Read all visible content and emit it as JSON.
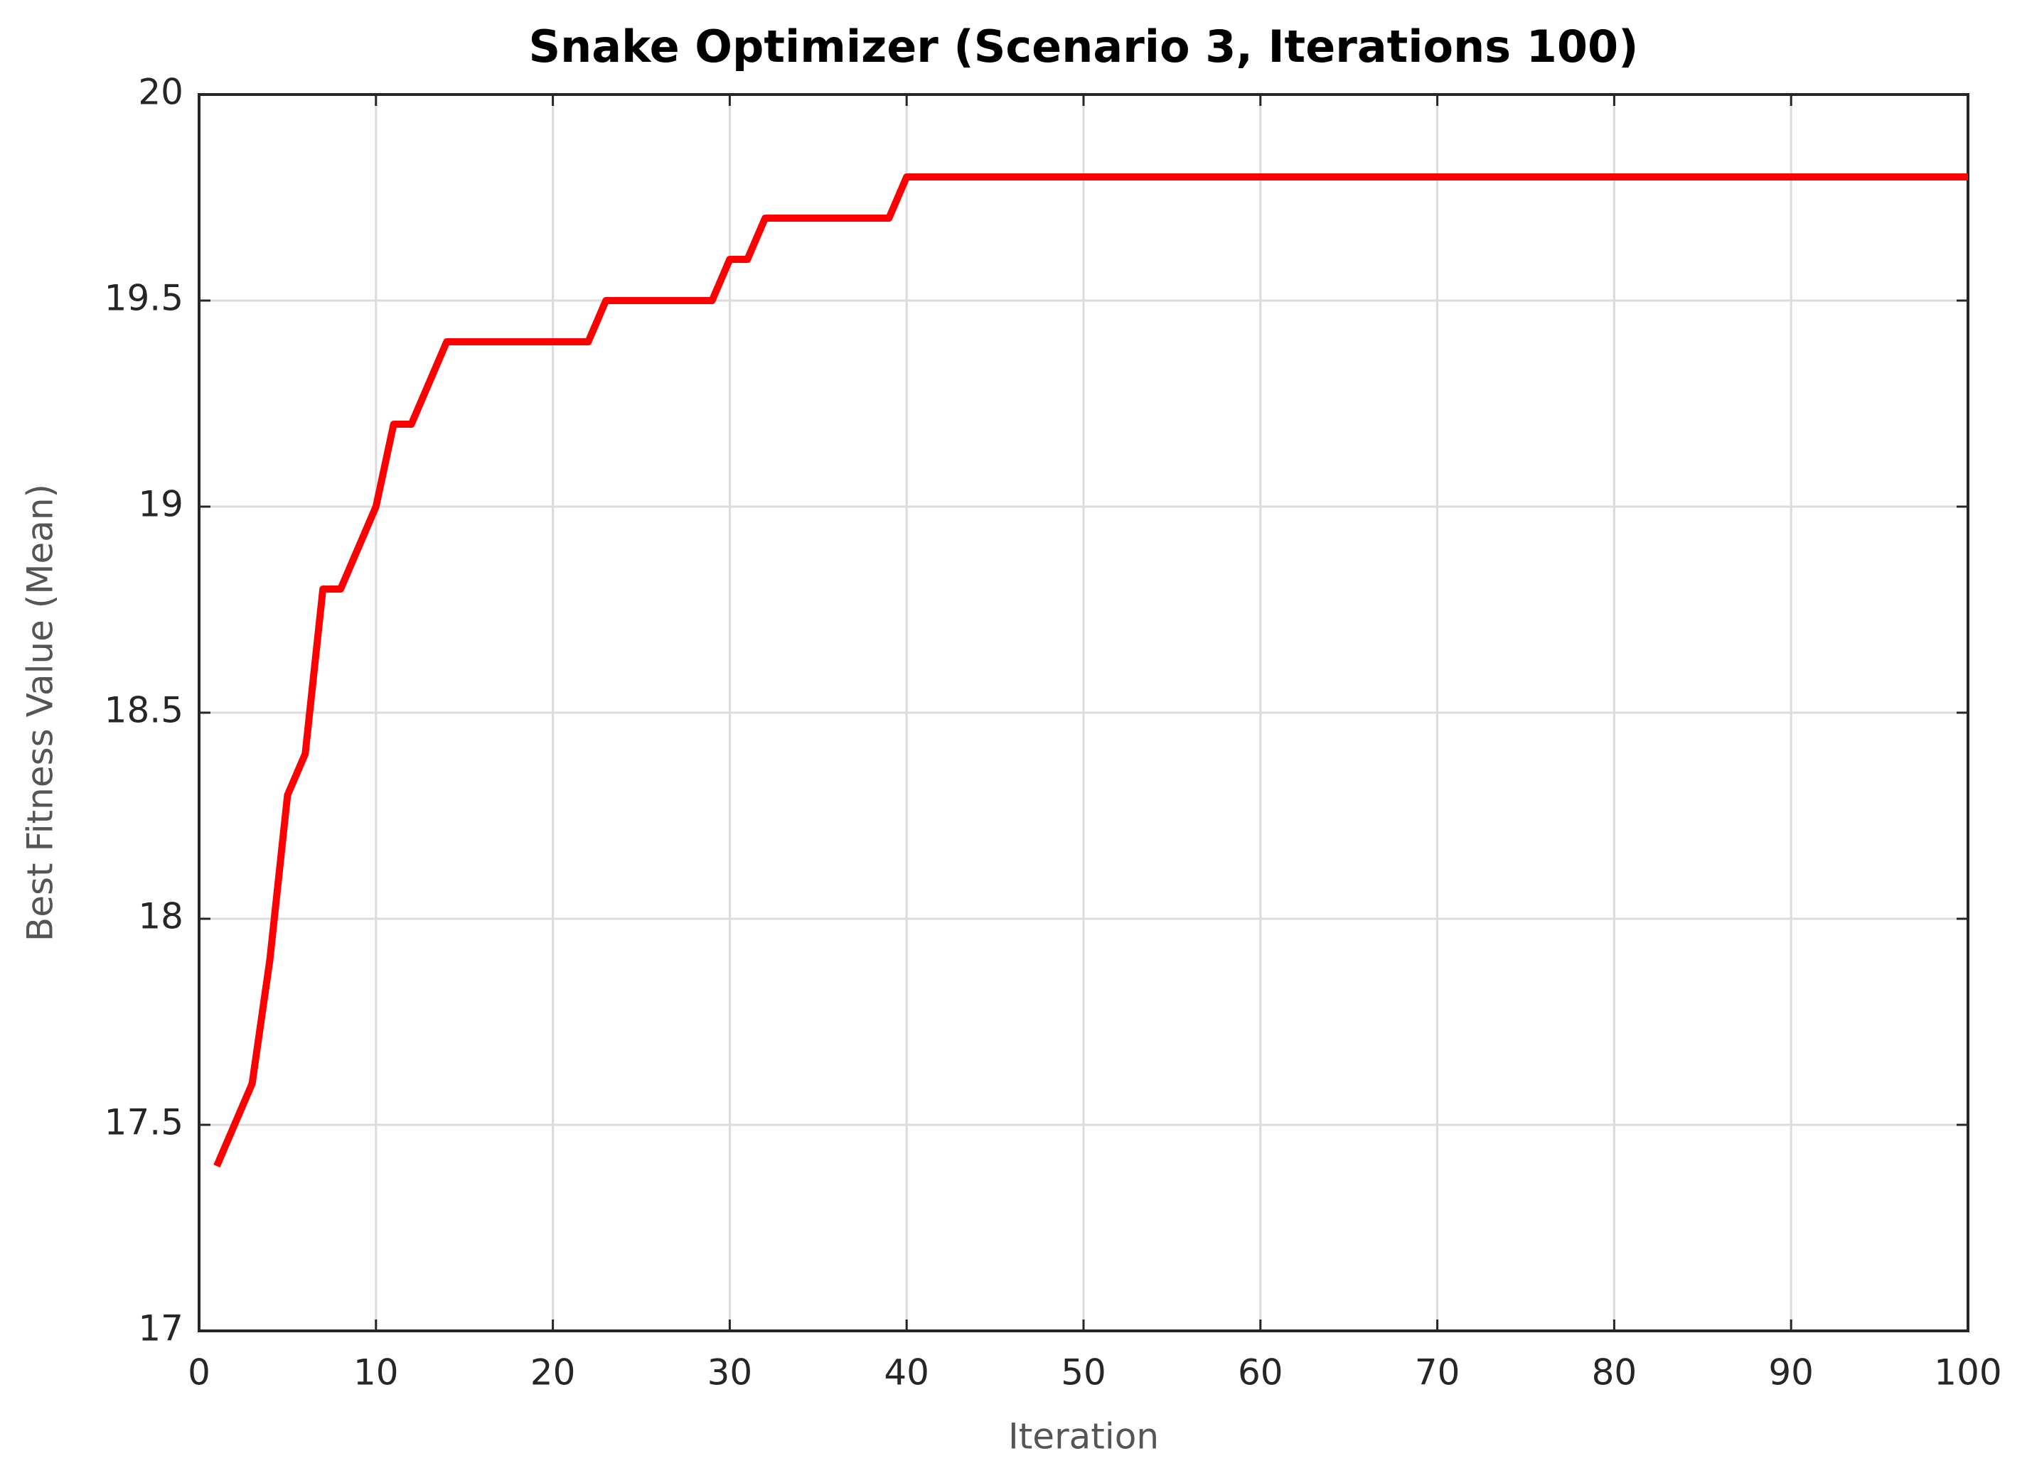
{
  "chart_data": {
    "type": "line",
    "title": "Snake Optimizer (Scenario 3, Iterations 100)",
    "x_label": "Iteration",
    "y_label": "Best Fitness Value (Mean)",
    "x": [
      1,
      2,
      3,
      4,
      5,
      6,
      7,
      8,
      9,
      10,
      11,
      12,
      13,
      14,
      15,
      16,
      17,
      18,
      19,
      20,
      21,
      22,
      23,
      24,
      25,
      26,
      27,
      28,
      29,
      30,
      31,
      32,
      33,
      34,
      35,
      36,
      37,
      38,
      39,
      40,
      41,
      42,
      43,
      44,
      45,
      46,
      47,
      48,
      49,
      50,
      51,
      52,
      53,
      54,
      55,
      56,
      57,
      58,
      59,
      60,
      61,
      62,
      63,
      64,
      65,
      66,
      67,
      68,
      69,
      70,
      71,
      72,
      73,
      74,
      75,
      76,
      77,
      78,
      79,
      80,
      81,
      82,
      83,
      84,
      85,
      86,
      87,
      88,
      89,
      90,
      91,
      92,
      93,
      94,
      95,
      96,
      97,
      98,
      99,
      100
    ],
    "values": [
      17.4,
      17.5,
      17.6,
      17.9,
      18.3,
      18.4,
      18.8,
      18.8,
      18.9,
      19.0,
      19.2,
      19.2,
      19.3,
      19.4,
      19.4,
      19.4,
      19.4,
      19.4,
      19.4,
      19.4,
      19.4,
      19.4,
      19.5,
      19.5,
      19.5,
      19.5,
      19.5,
      19.5,
      19.5,
      19.6,
      19.6,
      19.7,
      19.7,
      19.7,
      19.7,
      19.7,
      19.7,
      19.7,
      19.7,
      19.8,
      19.8,
      19.8,
      19.8,
      19.8,
      19.8,
      19.8,
      19.8,
      19.8,
      19.8,
      19.8,
      19.8,
      19.8,
      19.8,
      19.8,
      19.8,
      19.8,
      19.8,
      19.8,
      19.8,
      19.8,
      19.8,
      19.8,
      19.8,
      19.8,
      19.8,
      19.8,
      19.8,
      19.8,
      19.8,
      19.8,
      19.8,
      19.8,
      19.8,
      19.8,
      19.8,
      19.8,
      19.8,
      19.8,
      19.8,
      19.8,
      19.8,
      19.8,
      19.8,
      19.8,
      19.8,
      19.8,
      19.8,
      19.8,
      19.8,
      19.8,
      19.8,
      19.8,
      19.8,
      19.8,
      19.8,
      19.8,
      19.8,
      19.8,
      19.8,
      19.8
    ],
    "color": "#ff0000",
    "xlim": [
      0,
      100
    ],
    "xticks": [
      0,
      10,
      20,
      30,
      40,
      50,
      60,
      70,
      80,
      90,
      100
    ],
    "ylim": [
      17,
      20
    ],
    "yticks": [
      17,
      17.5,
      18,
      18.5,
      19,
      19.5,
      20
    ],
    "grid": true
  }
}
